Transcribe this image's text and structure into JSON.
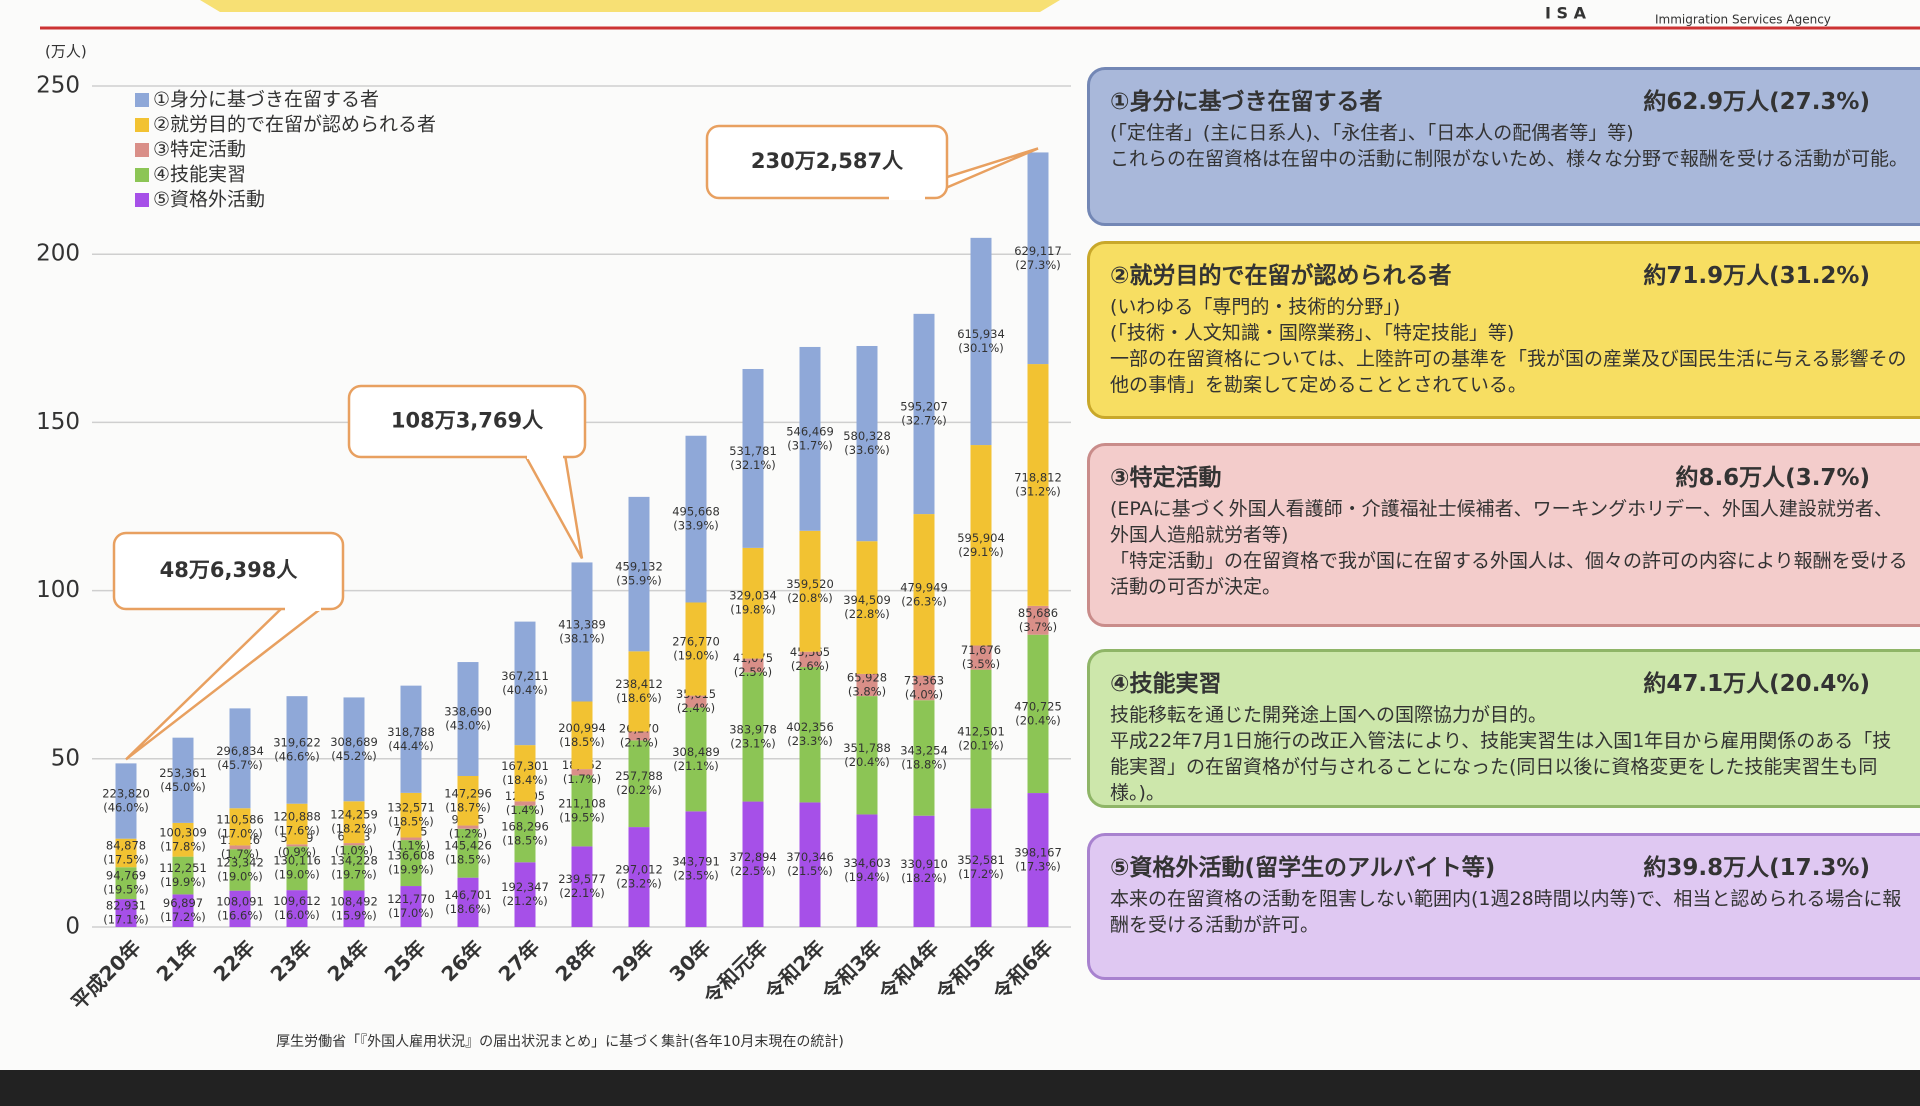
{
  "header": {
    "logo": "I S A",
    "agency_en": "Immigration Services Agency"
  },
  "chart_data": {
    "type": "stacked-bar",
    "y_unit": "(万人)",
    "categories": [
      "平成20年",
      "21年",
      "22年",
      "23年",
      "24年",
      "25年",
      "26年",
      "27年",
      "28年",
      "29年",
      "30年",
      "令和元年",
      "令和2年",
      "令和3年",
      "令和4年",
      "令和5年",
      "令和6年"
    ],
    "ylim": [
      0,
      250
    ],
    "yticks": [
      0,
      50,
      100,
      150,
      200,
      250
    ],
    "grid": true,
    "legend": "top-left",
    "series": [
      {
        "name": "①身分に基づき在留する者",
        "color": "#8fa8d8",
        "values": [
          22.382,
          25.3361,
          29.6834,
          31.9622,
          30.8689,
          31.8788,
          33.869,
          36.7211,
          41.3389,
          45.9132,
          49.5668,
          53.1781,
          54.6469,
          58.0328,
          59.5207,
          61.5934,
          62.9117
        ],
        "value_labels": [
          "223,820",
          "253,361",
          "296,834",
          "319,622",
          "308,689",
          "318,788",
          "338,690",
          "367,211",
          "413,389",
          "459,132",
          "495,668",
          "531,781",
          "546,469",
          "580,328",
          "595,207",
          "615,934",
          "629,117"
        ],
        "share_labels": [
          "(46.0%)",
          "(45.0%)",
          "(45.7%)",
          "(46.6%)",
          "(45.2%)",
          "(44.4%)",
          "(43.0%)",
          "(40.4%)",
          "(38.1%)",
          "(35.9%)",
          "(33.9%)",
          "(32.1%)",
          "(31.7%)",
          "(33.6%)",
          "(32.7%)",
          "(30.1%)",
          "(27.3%)"
        ]
      },
      {
        "name": "②就労目的で在留が認められる者",
        "color": "#f2c232",
        "values": [
          8.4878,
          10.0309,
          11.0586,
          12.0888,
          12.4259,
          13.2571,
          14.7296,
          16.7301,
          20.0994,
          23.8412,
          27.677,
          32.9034,
          35.952,
          39.4509,
          47.9949,
          59.5904,
          71.8812
        ],
        "value_labels": [
          "84,878",
          "100,309",
          "110,586",
          "120,888",
          "124,259",
          "132,571",
          "147,296",
          "167,301",
          "200,994",
          "238,412",
          "276,770",
          "329,034",
          "359,520",
          "394,509",
          "479,949",
          "595,904",
          "718,812"
        ],
        "share_labels": [
          "(17.5%)",
          "(17.8%)",
          "(17.0%)",
          "(17.6%)",
          "(18.2%)",
          "(18.5%)",
          "(18.7%)",
          "(18.4%)",
          "(18.5%)",
          "(18.6%)",
          "(19.0%)",
          "(19.8%)",
          "(20.8%)",
          "(22.8%)",
          "(26.3%)",
          "(29.1%)",
          "(31.2%)"
        ]
      },
      {
        "name": "③特定活動",
        "color": "#d98f88",
        "values": [
          null,
          null,
          1.1026,
          0.5939,
          0.6763,
          0.7735,
          0.9475,
          1.2705,
          1.8652,
          2.627,
          3.5615,
          4.1075,
          4.5565,
          6.5928,
          7.3363,
          7.1676,
          8.5686
        ],
        "value_labels": [
          null,
          null,
          "11,026",
          "5,939",
          "6,763",
          "7,735",
          "9,475",
          "12,705",
          "18,652",
          "26,270",
          "35,615",
          "41,075",
          "45,565",
          "65,928",
          "73,363",
          "71,676",
          "85,686"
        ],
        "share_labels": [
          null,
          null,
          "(1.7%)",
          "(0.9%)",
          "(1.0%)",
          "(1.1%)",
          "(1.2%)",
          "(1.4%)",
          "(1.7%)",
          "(2.1%)",
          "(2.4%)",
          "(2.5%)",
          "(2.6%)",
          "(3.8%)",
          "(4.0%)",
          "(3.5%)",
          "(3.7%)"
        ]
      },
      {
        "name": "④技能実習",
        "color": "#8cc555",
        "values": [
          9.4769,
          11.2251,
          12.3342,
          13.0116,
          13.4228,
          13.6608,
          14.5426,
          16.8296,
          21.1108,
          25.7788,
          30.8489,
          38.3978,
          40.2356,
          35.1788,
          34.3254,
          41.2501,
          47.0725
        ],
        "value_labels": [
          "94,769",
          "112,251",
          "123,342",
          "130,116",
          "134,228",
          "136,608",
          "145,426",
          "168,296",
          "211,108",
          "257,788",
          "308,489",
          "383,978",
          "402,356",
          "351,788",
          "343,254",
          "412,501",
          "470,725"
        ],
        "share_labels": [
          "(19.5%)",
          "(19.9%)",
          "(19.0%)",
          "(19.0%)",
          "(19.7%)",
          "(19.9%)",
          "(18.5%)",
          "(18.5%)",
          "(19.5%)",
          "(20.2%)",
          "(21.1%)",
          "(23.1%)",
          "(23.3%)",
          "(20.4%)",
          "(18.8%)",
          "(20.1%)",
          "(20.4%)"
        ]
      },
      {
        "name": "⑤資格外活動",
        "color": "#a650e8",
        "values": [
          8.2931,
          9.6897,
          10.8091,
          10.9612,
          10.8492,
          12.177,
          14.6701,
          19.2347,
          23.9577,
          29.7012,
          34.3791,
          37.2894,
          37.0346,
          33.4603,
          33.091,
          35.2581,
          39.8167
        ],
        "value_labels": [
          "82,931",
          "96,897",
          "108,091",
          "109,612",
          "108,492",
          "121,770",
          "146,701",
          "192,347",
          "239,577",
          "297,012",
          "343,791",
          "372,894",
          "370,346",
          "334,603",
          "330,910",
          "352,581",
          "398,167"
        ],
        "share_labels": [
          "(17.1%)",
          "(17.2%)",
          "(16.6%)",
          "(16.0%)",
          "(15.9%)",
          "(17.0%)",
          "(18.6%)",
          "(21.2%)",
          "(22.1%)",
          "(23.2%)",
          "(23.5%)",
          "(22.5%)",
          "(21.5%)",
          "(19.4%)",
          "(18.2%)",
          "(17.2%)",
          "(17.3%)"
        ]
      }
    ],
    "annotations": [
      {
        "text": "48万6,398人"
      },
      {
        "text": "108万3,769人"
      },
      {
        "text": "230万2,587人"
      }
    ],
    "source": "厚生労働省「『外国人雇用状況』の届出状況まとめ」に基づく集計(各年10月末現在の統計)"
  },
  "panels": [
    {
      "title": "①身分に基づき在留する者",
      "amount": "約62.9万人(27.3%)",
      "lines": [
        "(「定住者」(主に日系人)、「永住者」、「日本人の配偶者等」等)",
        "これらの在留資格は在留中の活動に制限がないため、様々な分野で報酬を受ける活動が可能。"
      ]
    },
    {
      "title": "②就労目的で在留が認められる者",
      "amount": "約71.9万人(31.2%)",
      "lines": [
        "(いわゆる「専門的・技術的分野」)",
        "(「技術・人文知識・国際業務」、「特定技能」等)",
        "一部の在留資格については、上陸許可の基準を「我が国の産業及び国民生活に与える影響その他の事情」を勘案して定めることとされている。"
      ]
    },
    {
      "title": "③特定活動",
      "amount": "約8.6万人(3.7%)",
      "lines": [
        "(EPAに基づく外国人看護師・介護福祉士候補者、ワーキングホリデー、外国人建設就労者、外国人造船就労者等)",
        "「特定活動」の在留資格で我が国に在留する外国人は、個々の許可の内容により報酬を受ける活動の可否が決定。"
      ]
    },
    {
      "title": "④技能実習",
      "amount": "約47.1万人(20.4%)",
      "lines": [
        "技能移転を通じた開発途上国への国際協力が目的。",
        "平成22年7月1日施行の改正入管法により、技能実習生は入国1年目から雇用関係のある「技能実習」の在留資格が付与されることになった(同日以後に資格変更をした技能実習生も同様。)。"
      ]
    },
    {
      "title": "⑤資格外活動(留学生のアルバイト等)",
      "amount": "約39.8万人(17.3%)",
      "lines": [
        "本来の在留資格の活動を阻害しない範囲内(1週28時間以内等)で、相当と認められる場合に報酬を受ける活動が許可。"
      ]
    }
  ]
}
